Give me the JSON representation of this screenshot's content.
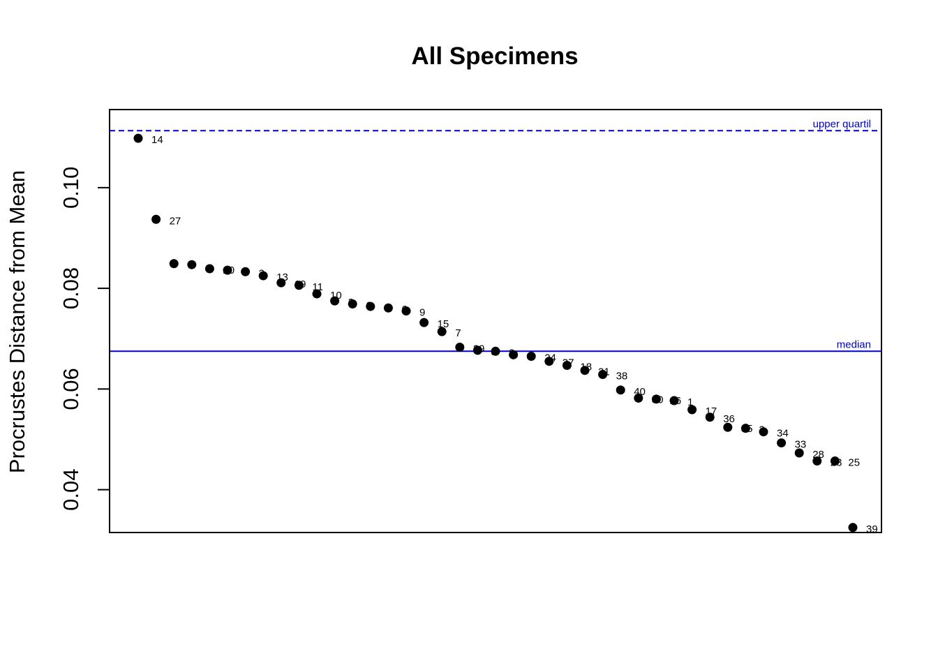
{
  "chart_data": {
    "type": "scatter",
    "title": "All Specimens",
    "ylabel": "Procrustes Distance from Mean",
    "xlabel": "",
    "ylim": [
      0.0315,
      0.1155
    ],
    "yticks": [
      "0.04",
      "0.06",
      "0.08",
      "0.10"
    ],
    "yticks_values": [
      0.04,
      0.06,
      0.08,
      0.1
    ],
    "grid": false,
    "point_color": "#000000",
    "reference_color": "#0000cc",
    "points": [
      {
        "rank": 1,
        "label": "14",
        "y": 0.1098
      },
      {
        "rank": 2,
        "label": "27",
        "y": 0.0937
      },
      {
        "rank": 3,
        "label": "",
        "y": 0.0849
      },
      {
        "rank": 4,
        "label": "",
        "y": 0.0847
      },
      {
        "rank": 5,
        "label": "20",
        "y": 0.0839
      },
      {
        "rank": 6,
        "label": "",
        "y": 0.0836
      },
      {
        "rank": 7,
        "label": "2",
        "y": 0.0833
      },
      {
        "rank": 8,
        "label": "13",
        "y": 0.0825
      },
      {
        "rank": 9,
        "label": "19",
        "y": 0.0811
      },
      {
        "rank": 10,
        "label": "11",
        "y": 0.0806
      },
      {
        "rank": 11,
        "label": "10",
        "y": 0.0789
      },
      {
        "rank": 12,
        "label": "3",
        "y": 0.0775
      },
      {
        "rank": 13,
        "label": "6",
        "y": 0.0769
      },
      {
        "rank": 14,
        "label": "4",
        "y": 0.0764
      },
      {
        "rank": 15,
        "label": "6",
        "y": 0.0761
      },
      {
        "rank": 16,
        "label": "9",
        "y": 0.0755
      },
      {
        "rank": 17,
        "label": "15",
        "y": 0.0732
      },
      {
        "rank": 18,
        "label": "7",
        "y": 0.0714
      },
      {
        "rank": 19,
        "label": "29",
        "y": 0.0683
      },
      {
        "rank": 20,
        "label": "8",
        "y": 0.0677
      },
      {
        "rank": 21,
        "label": "2",
        "y": 0.0675
      },
      {
        "rank": 22,
        "label": "3",
        "y": 0.0668
      },
      {
        "rank": 23,
        "label": "24",
        "y": 0.0665
      },
      {
        "rank": 24,
        "label": "37",
        "y": 0.0655
      },
      {
        "rank": 25,
        "label": "18",
        "y": 0.0647
      },
      {
        "rank": 26,
        "label": "21",
        "y": 0.0637
      },
      {
        "rank": 27,
        "label": "38",
        "y": 0.0629
      },
      {
        "rank": 28,
        "label": "40",
        "y": 0.0598
      },
      {
        "rank": 29,
        "label": "30",
        "y": 0.0582
      },
      {
        "rank": 30,
        "label": "16",
        "y": 0.058
      },
      {
        "rank": 31,
        "label": "1",
        "y": 0.0577
      },
      {
        "rank": 32,
        "label": "17",
        "y": 0.0559
      },
      {
        "rank": 33,
        "label": "36",
        "y": 0.0544
      },
      {
        "rank": 34,
        "label": "35",
        "y": 0.0524
      },
      {
        "rank": 35,
        "label": "2",
        "y": 0.0522
      },
      {
        "rank": 36,
        "label": "34",
        "y": 0.0515
      },
      {
        "rank": 37,
        "label": "33",
        "y": 0.0493
      },
      {
        "rank": 38,
        "label": "28",
        "y": 0.0473
      },
      {
        "rank": 39,
        "label": "23",
        "y": 0.0457
      },
      {
        "rank": 40,
        "label": "25",
        "y": 0.0457
      },
      {
        "rank": 41,
        "label": "39",
        "y": 0.0325
      }
    ],
    "reference_lines": [
      {
        "name": "upper quartile",
        "label": "upper quartil",
        "y": 0.1113,
        "style": "dashed"
      },
      {
        "name": "median",
        "label": "median",
        "y": 0.0675,
        "style": "solid"
      }
    ]
  }
}
